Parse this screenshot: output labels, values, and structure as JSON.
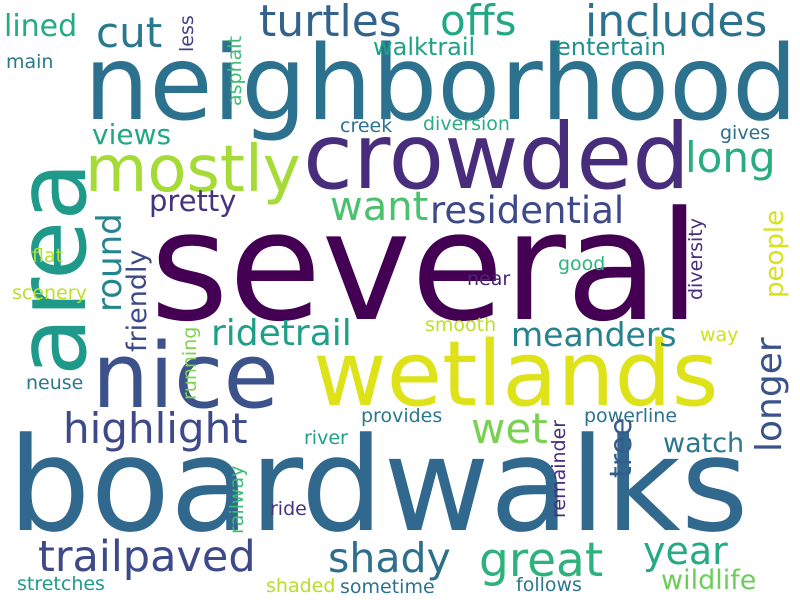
{
  "words": [
    {
      "text": "several",
      "color": "#440154"
    },
    {
      "text": "boardwalks",
      "color": "#31688e"
    },
    {
      "text": "neighborhoods",
      "color": "#2c728e"
    },
    {
      "text": "area",
      "color": "#1f9a8a"
    },
    {
      "text": "crowded",
      "color": "#472d7b"
    },
    {
      "text": "wetlands",
      "color": "#dde318"
    },
    {
      "text": "nice",
      "color": "#3b528b"
    },
    {
      "text": "mostly",
      "color": "#a5db36"
    },
    {
      "text": "turtles",
      "color": "#33638d"
    },
    {
      "text": "includes",
      "color": "#2c728e"
    },
    {
      "text": "offs",
      "color": "#22a884"
    },
    {
      "text": "cut",
      "color": "#2a788e"
    },
    {
      "text": "lined",
      "color": "#25ab82"
    },
    {
      "text": "less",
      "color": "#424086"
    },
    {
      "text": "asphalt",
      "color": "#3dbc74"
    },
    {
      "text": "walktrail",
      "color": "#1fa187"
    },
    {
      "text": "entertain",
      "color": "#21918c"
    },
    {
      "text": "main",
      "color": "#2a788e"
    },
    {
      "text": "long",
      "color": "#27ad81"
    },
    {
      "text": "views",
      "color": "#22a884"
    },
    {
      "text": "creek",
      "color": "#2c728e"
    },
    {
      "text": "diversion",
      "color": "#29af7f"
    },
    {
      "text": "gives",
      "color": "#2f6c8e"
    },
    {
      "text": "pretty",
      "color": "#46337f"
    },
    {
      "text": "want",
      "color": "#4ac16d"
    },
    {
      "text": "residential",
      "color": "#3e4989"
    },
    {
      "text": "round",
      "color": "#25858e"
    },
    {
      "text": "friendly",
      "color": "#3e4989"
    },
    {
      "text": "diversity",
      "color": "#472f7d"
    },
    {
      "text": "people",
      "color": "#d8e219"
    },
    {
      "text": "flat",
      "color": "#b5de2b"
    },
    {
      "text": "good",
      "color": "#2fb47c"
    },
    {
      "text": "scenery",
      "color": "#bddf26"
    },
    {
      "text": "near",
      "color": "#482576"
    },
    {
      "text": "ridetrail",
      "color": "#1f9e89"
    },
    {
      "text": "meanders",
      "color": "#26828e"
    },
    {
      "text": "smooth",
      "color": "#bddf26"
    },
    {
      "text": "longer",
      "color": "#3b528b"
    },
    {
      "text": "way",
      "color": "#d0e11c"
    },
    {
      "text": "running",
      "color": "#7fd34e"
    },
    {
      "text": "neuse",
      "color": "#2a788e"
    },
    {
      "text": "highlight",
      "color": "#3e4989"
    },
    {
      "text": "provides",
      "color": "#2a788e"
    },
    {
      "text": "powerline",
      "color": "#2c728e"
    },
    {
      "text": "wet",
      "color": "#7ad151"
    },
    {
      "text": "river",
      "color": "#1f9e89"
    },
    {
      "text": "remainder",
      "color": "#472d7b"
    },
    {
      "text": "tree",
      "color": "#365c8d"
    },
    {
      "text": "watch",
      "color": "#2a788e"
    },
    {
      "text": "railway",
      "color": "#3dbc74"
    },
    {
      "text": "ride",
      "color": "#46337f"
    },
    {
      "text": "trailpaved",
      "color": "#3e4989"
    },
    {
      "text": "shady",
      "color": "#2e6f8e"
    },
    {
      "text": "great",
      "color": "#2db27d"
    },
    {
      "text": "year",
      "color": "#25ab82"
    },
    {
      "text": "wildlife",
      "color": "#6ccd5a"
    },
    {
      "text": "stretches",
      "color": "#1f9a8a"
    },
    {
      "text": "shaded",
      "color": "#b5de2b"
    },
    {
      "text": "sometime",
      "color": "#2c728e"
    },
    {
      "text": "follows",
      "color": "#2a788e"
    }
  ]
}
